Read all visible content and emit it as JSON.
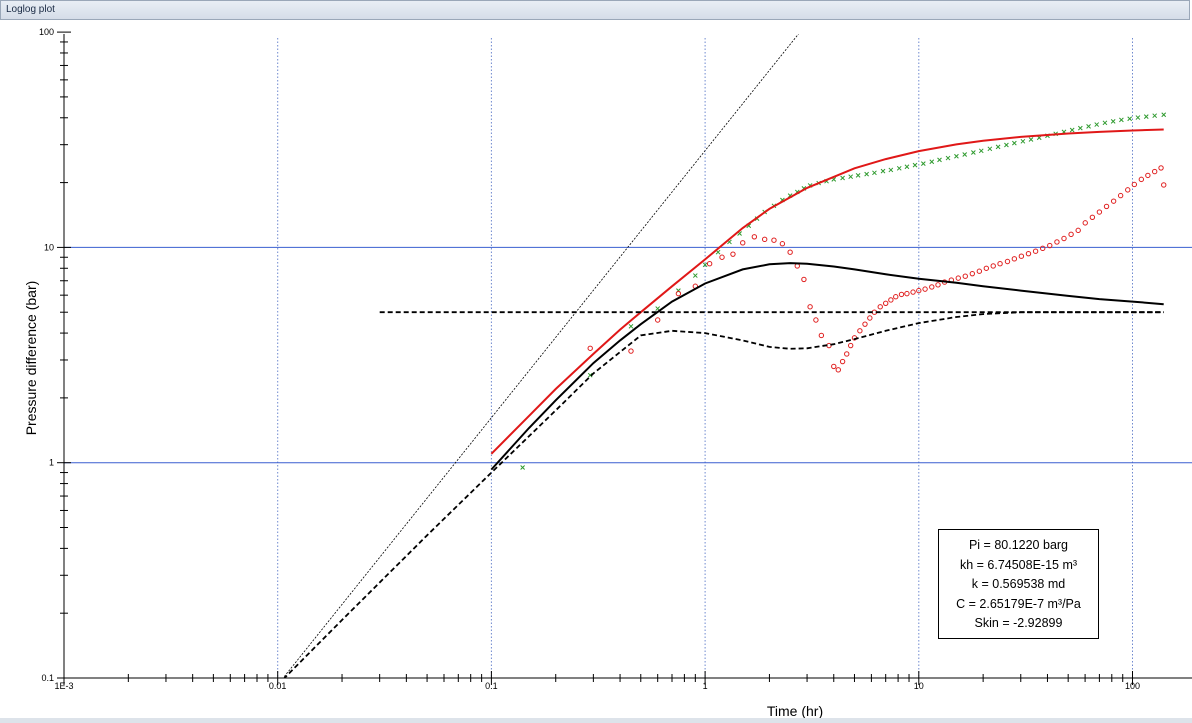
{
  "window": {
    "title": "Loglog plot"
  },
  "colors": {
    "grid_major": "#3a5fd0",
    "grid_minor": "#6f89cf",
    "derivative_points": "#e02020",
    "pressure_points": "#2e9a2e",
    "model_pressure": "#e01818",
    "model_derivative": "#000000",
    "unit_slope": "#000000"
  },
  "parameters": {
    "pi": "Pi = 80.1220 barg",
    "kh": "kh = 6.74508E-15 m³",
    "k": "k = 0.569538 md",
    "c": "C = 2.65179E-7 m³/Pa",
    "skin": "Skin = -2.92899"
  },
  "chart_data": {
    "type": "scatter",
    "x_scale": "log",
    "y_scale": "log",
    "xlabel": "Time (hr)",
    "ylabel": "Pressure difference (bar)",
    "xlim": [
      0.001,
      140
    ],
    "ylim": [
      0.1,
      100
    ],
    "x_ticks": [
      "1E-3",
      "0.01",
      "0.1",
      "1",
      "10",
      "100"
    ],
    "y_ticks": [
      "0.1",
      "1",
      "10",
      "100"
    ],
    "grid": true,
    "series": [
      {
        "kind": "points",
        "marker": "x",
        "x": [
          0.14,
          0.29,
          0.45,
          0.6,
          0.75,
          0.9,
          1.0,
          1.15,
          1.3,
          1.45,
          1.6,
          1.75,
          1.9,
          2.1,
          2.3,
          2.5,
          2.7,
          2.9,
          3.1,
          3.4,
          3.7,
          4.0,
          4.4,
          4.8,
          5.2,
          5.7,
          6.2,
          6.8,
          7.4,
          8.1,
          8.8,
          9.6,
          10.5,
          11.5,
          12.5,
          13.7,
          15,
          16.4,
          18,
          19.6,
          21.5,
          23.5,
          25.7,
          28,
          30.7,
          33.5,
          36.6,
          40,
          43.7,
          47.8,
          52.2,
          57,
          62.3,
          68,
          74.3,
          81.2,
          88.7,
          97,
          106,
          116,
          127,
          140
        ],
        "y": [
          0.95,
          2.55,
          4.3,
          5.2,
          6.3,
          7.4,
          8.3,
          9.5,
          10.6,
          11.6,
          12.6,
          13.6,
          14.6,
          15.6,
          16.6,
          17.4,
          18.1,
          18.8,
          19.4,
          19.9,
          20.3,
          20.7,
          21.0,
          21.3,
          21.6,
          21.9,
          22.2,
          22.6,
          22.9,
          23.3,
          23.7,
          24.1,
          24.5,
          25.0,
          25.5,
          26.0,
          26.5,
          27.0,
          27.6,
          28.1,
          28.7,
          29.3,
          29.9,
          30.5,
          31.1,
          31.7,
          32.3,
          33.0,
          33.7,
          34.4,
          35.1,
          35.8,
          36.5,
          37.2,
          37.9,
          38.5,
          39.1,
          39.6,
          40.1,
          40.5,
          40.9,
          41.3
        ]
      },
      {
        "kind": "points",
        "marker": "o",
        "x": [
          0.29,
          0.45,
          0.6,
          0.75,
          0.9,
          1.05,
          1.2,
          1.35,
          1.5,
          1.7,
          1.9,
          2.1,
          2.3,
          2.5,
          2.7,
          2.9,
          3.1,
          3.3,
          3.5,
          3.8,
          4.0,
          4.2,
          4.4,
          4.6,
          4.8,
          5.0,
          5.3,
          5.6,
          5.9,
          6.2,
          6.6,
          7.0,
          7.4,
          7.8,
          8.3,
          8.8,
          9.4,
          10,
          10.7,
          11.5,
          12.3,
          13.2,
          14.2,
          15.3,
          16.5,
          17.8,
          19.2,
          20.7,
          22.3,
          24,
          26,
          28,
          30.2,
          32.6,
          35.2,
          38,
          41,
          44.3,
          47.8,
          51.6,
          55.7,
          60.1,
          64.9,
          70,
          75.6,
          81.6,
          88,
          95,
          102,
          110,
          118,
          127,
          136,
          140
        ],
        "y": [
          3.4,
          3.3,
          4.6,
          6.1,
          6.6,
          8.4,
          9.0,
          9.3,
          10.5,
          11.2,
          10.9,
          10.8,
          10.4,
          9.5,
          8.2,
          7.1,
          5.3,
          4.6,
          3.9,
          3.5,
          2.8,
          2.7,
          2.95,
          3.2,
          3.5,
          3.8,
          4.1,
          4.4,
          4.7,
          5.0,
          5.3,
          5.5,
          5.7,
          5.9,
          6.05,
          6.1,
          6.2,
          6.3,
          6.4,
          6.55,
          6.7,
          6.9,
          7.05,
          7.2,
          7.35,
          7.55,
          7.75,
          8.0,
          8.2,
          8.4,
          8.6,
          8.85,
          9.1,
          9.35,
          9.6,
          9.9,
          10.2,
          10.6,
          11.0,
          11.5,
          12.0,
          13.0,
          13.8,
          14.6,
          15.5,
          16.4,
          17.4,
          18.5,
          19.6,
          20.7,
          21.6,
          22.5,
          23.4,
          19.5
        ]
      },
      {
        "kind": "line",
        "style": "solid",
        "x": [
          0.1,
          0.15,
          0.2,
          0.3,
          0.4,
          0.5,
          0.7,
          1,
          1.5,
          2,
          3,
          5,
          7,
          10,
          15,
          20,
          30,
          50,
          70,
          100,
          140
        ],
        "y": [
          1.1,
          1.65,
          2.2,
          3.2,
          4.15,
          5.0,
          6.6,
          8.8,
          12.3,
          15.1,
          18.9,
          23.3,
          25.7,
          28.0,
          30.1,
          31.3,
          32.6,
          33.8,
          34.4,
          34.9,
          35.3
        ]
      },
      {
        "kind": "line",
        "style": "solid",
        "x": [
          0.1,
          0.15,
          0.2,
          0.3,
          0.4,
          0.5,
          0.7,
          1,
          1.5,
          2,
          2.5,
          3,
          4,
          5,
          7,
          10,
          15,
          20,
          30,
          50,
          70,
          100,
          140
        ],
        "y": [
          0.93,
          1.45,
          1.95,
          2.9,
          3.7,
          4.4,
          5.6,
          6.8,
          7.9,
          8.35,
          8.45,
          8.4,
          8.15,
          7.9,
          7.5,
          7.15,
          6.85,
          6.6,
          6.3,
          5.95,
          5.75,
          5.6,
          5.45
        ]
      },
      {
        "kind": "line",
        "style": "dashed",
        "x": [
          0.03,
          0.1,
          0.2,
          0.3,
          0.5,
          1,
          2,
          5,
          10,
          20,
          50,
          100,
          140
        ],
        "y": [
          5.0,
          5.0,
          5.0,
          5.0,
          5.0,
          5.0,
          5.0,
          5.0,
          5.0,
          5.0,
          5.0,
          5.0,
          5.0
        ]
      },
      {
        "kind": "line",
        "style": "dashed",
        "x": [
          0.01,
          0.02,
          0.05,
          0.1,
          0.2,
          0.3,
          0.5,
          0.7,
          1,
          1.5,
          2,
          2.5,
          3,
          4,
          5,
          7,
          10,
          15,
          20,
          30,
          50,
          100,
          140
        ],
        "y": [
          0.093,
          0.186,
          0.46,
          0.9,
          1.75,
          2.6,
          3.9,
          4.1,
          4.0,
          3.7,
          3.45,
          3.38,
          3.4,
          3.55,
          3.75,
          4.1,
          4.45,
          4.75,
          4.9,
          5.0,
          5.0,
          5.0,
          5.0
        ]
      },
      {
        "kind": "line",
        "style": "thin",
        "x": [
          0.01,
          3
        ],
        "y": [
          0.093,
          110
        ]
      }
    ]
  }
}
